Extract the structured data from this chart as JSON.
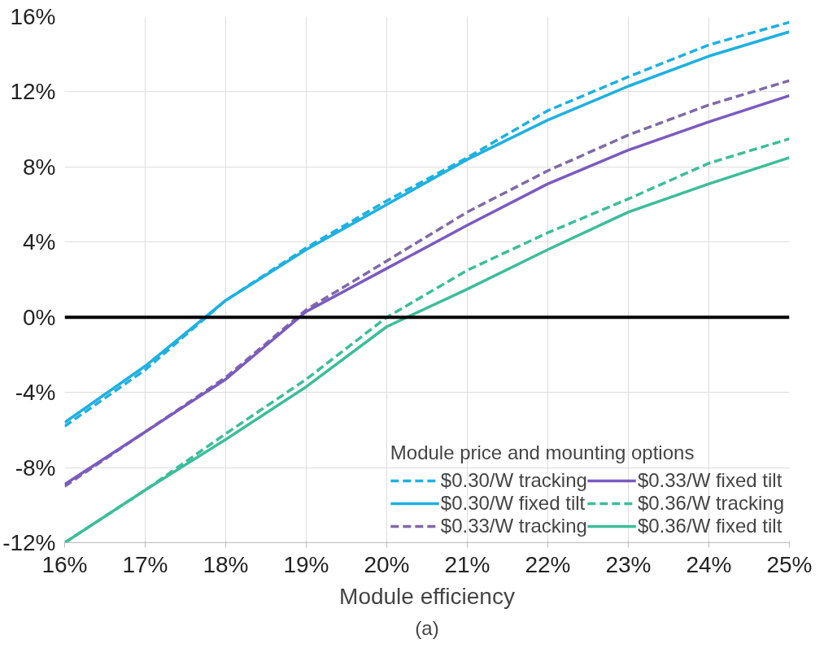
{
  "chart_data": {
    "type": "line",
    "xlabel": "Module efficiency",
    "legend_title": "Module price and mounting options",
    "x": [
      16,
      17,
      18,
      19,
      20,
      21,
      22,
      23,
      24,
      25
    ],
    "series": [
      {
        "name": "$0.30/W tracking",
        "color": "#1fb0e0",
        "line_style": "dashed",
        "values": [
          -5.8,
          -2.8,
          0.9,
          3.7,
          6.2,
          8.5,
          11.0,
          12.8,
          14.5,
          15.7
        ]
      },
      {
        "name": "$0.30/W fixed tilt",
        "color": "#1fb0e0",
        "line_style": "solid",
        "values": [
          -5.6,
          -2.6,
          0.9,
          3.6,
          6.0,
          8.4,
          10.5,
          12.3,
          13.9,
          15.2
        ]
      },
      {
        "name": "$0.33/W tracking",
        "color": "#7f6aa8",
        "line_style": "dashed",
        "values": [
          -9.0,
          -6.1,
          -3.2,
          0.4,
          3.0,
          5.6,
          7.8,
          9.7,
          11.3,
          12.6
        ]
      },
      {
        "name": "$0.33/W fixed tilt",
        "color": "#7a5bbf",
        "line_style": "solid",
        "values": [
          -8.9,
          -6.1,
          -3.3,
          0.3,
          2.6,
          4.9,
          7.1,
          8.9,
          10.4,
          11.8
        ]
      },
      {
        "name": "$0.36/W tracking",
        "color": "#3dbd9a",
        "line_style": "dashed",
        "values": [
          -12.0,
          -9.2,
          -6.2,
          -3.3,
          0.0,
          2.5,
          4.5,
          6.3,
          8.2,
          9.5
        ]
      },
      {
        "name": "$0.36/W fixed tilt",
        "color": "#3dbd9a",
        "line_style": "solid",
        "values": [
          -12.0,
          -9.2,
          -6.5,
          -3.7,
          -0.5,
          1.5,
          3.6,
          5.6,
          7.1,
          8.5
        ]
      }
    ],
    "xlim": [
      16,
      25
    ],
    "ylim": [
      -12,
      16
    ],
    "xticks": [
      {
        "value": 16,
        "label": "16%"
      },
      {
        "value": 17,
        "label": "17%"
      },
      {
        "value": 18,
        "label": "18%"
      },
      {
        "value": 19,
        "label": "19%"
      },
      {
        "value": 20,
        "label": "20%"
      },
      {
        "value": 21,
        "label": "21%"
      },
      {
        "value": 22,
        "label": "22%"
      },
      {
        "value": 23,
        "label": "23%"
      },
      {
        "value": 24,
        "label": "24%"
      },
      {
        "value": 25,
        "label": "25%"
      }
    ],
    "yticks": [
      {
        "value": -12,
        "label": "-12%"
      },
      {
        "value": -8,
        "label": "-8%"
      },
      {
        "value": -4,
        "label": "-4%"
      },
      {
        "value": 0,
        "label": "0%"
      },
      {
        "value": 4,
        "label": "4%"
      },
      {
        "value": 8,
        "label": "8%"
      },
      {
        "value": 12,
        "label": "12%"
      },
      {
        "value": 16,
        "label": "16%"
      }
    ],
    "ref_lines": [
      {
        "axis": "y",
        "value": 0,
        "color": "#000000"
      }
    ],
    "annotations": [
      "(a)"
    ],
    "grid": true,
    "legend": "bottom right",
    "marker": "none"
  }
}
